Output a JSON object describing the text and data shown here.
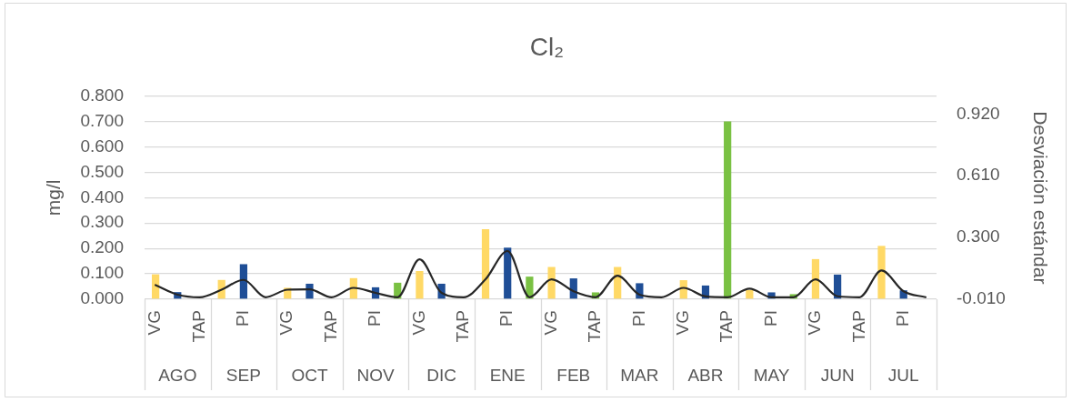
{
  "chart_data": {
    "type": "bar",
    "title": "Cl₂",
    "ylabel": "mg/l",
    "y2label": "Desviación estándar",
    "categories": [
      "VG",
      null,
      "TAP",
      null,
      "PI",
      null,
      "VG",
      null,
      "TAP",
      null,
      "PI",
      null,
      "VG",
      null,
      "TAP",
      null,
      "PI",
      null,
      "VG",
      null,
      "TAP",
      null,
      "PI",
      null,
      "VG",
      null,
      "TAP",
      null,
      "PI",
      null,
      "VG",
      null,
      "TAP",
      null,
      "PI",
      null
    ],
    "annotations": [
      "AGO",
      "SEP",
      "OCT",
      "NOV",
      "DIC",
      "ENE",
      "FEB",
      "MAR",
      "ABR",
      "MAY",
      "JUN",
      "JUL"
    ],
    "series": [
      {
        "color": "#ffd966",
        "values": [
          0.098,
          null,
          null,
          0.076,
          null,
          null,
          0.045,
          null,
          null,
          0.083,
          null,
          null,
          0.111,
          null,
          null,
          0.276,
          null,
          null,
          0.127,
          null,
          null,
          0.127,
          null,
          null,
          0.075,
          null,
          null,
          0.036,
          null,
          null,
          0.158,
          null,
          null,
          0.21,
          null,
          null
        ]
      },
      {
        "color": "#1f4e96",
        "values": [
          null,
          0.028,
          null,
          null,
          0.138,
          null,
          null,
          0.061,
          null,
          null,
          0.047,
          null,
          null,
          0.061,
          null,
          null,
          0.203,
          null,
          null,
          0.082,
          null,
          null,
          0.063,
          null,
          null,
          0.054,
          null,
          null,
          0.027,
          null,
          null,
          0.097,
          null,
          null,
          0.035,
          null
        ]
      },
      {
        "color": "#7ac143",
        "values": [
          null,
          null,
          null,
          null,
          null,
          null,
          null,
          null,
          null,
          null,
          null,
          0.065,
          null,
          null,
          null,
          null,
          null,
          0.089,
          null,
          null,
          0.027,
          null,
          null,
          null,
          null,
          null,
          0.7,
          null,
          null,
          0.02,
          null,
          null,
          null,
          null,
          null,
          null
        ]
      },
      {
        "type": "line",
        "axis": "y2",
        "color": "#262626",
        "values": [
          0.061,
          0.013,
          0,
          0.038,
          0.087,
          0,
          0.038,
          0.04,
          0,
          0.047,
          0.022,
          0,
          0.19,
          0.022,
          0,
          0.09,
          0.232,
          0,
          0.09,
          0.03,
          0,
          0.108,
          0.013,
          0,
          0.047,
          0.004,
          0,
          0.043,
          0,
          0,
          0.09,
          0.005,
          0,
          0.134,
          0.03,
          0
        ]
      }
    ],
    "ylim": [
      0,
      0.8
    ],
    "yticks": [
      {
        "value": 0,
        "label": "0.000"
      },
      {
        "value": 0.1,
        "label": "0.100"
      },
      {
        "value": 0.2,
        "label": "0.200"
      },
      {
        "value": 0.3,
        "label": "0.300"
      },
      {
        "value": 0.4,
        "label": "0.400"
      },
      {
        "value": 0.5,
        "label": "0.500"
      },
      {
        "value": 0.6,
        "label": "0.600"
      },
      {
        "value": 0.7,
        "label": "0.700"
      },
      {
        "value": 0.8,
        "label": "0.800"
      }
    ],
    "y2lim": [
      -0.01,
      1.01
    ],
    "y2ticks": [
      {
        "value": -0.01,
        "label": "-0.010"
      },
      {
        "value": 0.3,
        "label": "0.300"
      },
      {
        "value": 0.61,
        "label": "0.610"
      },
      {
        "value": 0.92,
        "label": "0.920"
      }
    ],
    "grid": "y",
    "marker": "none"
  }
}
